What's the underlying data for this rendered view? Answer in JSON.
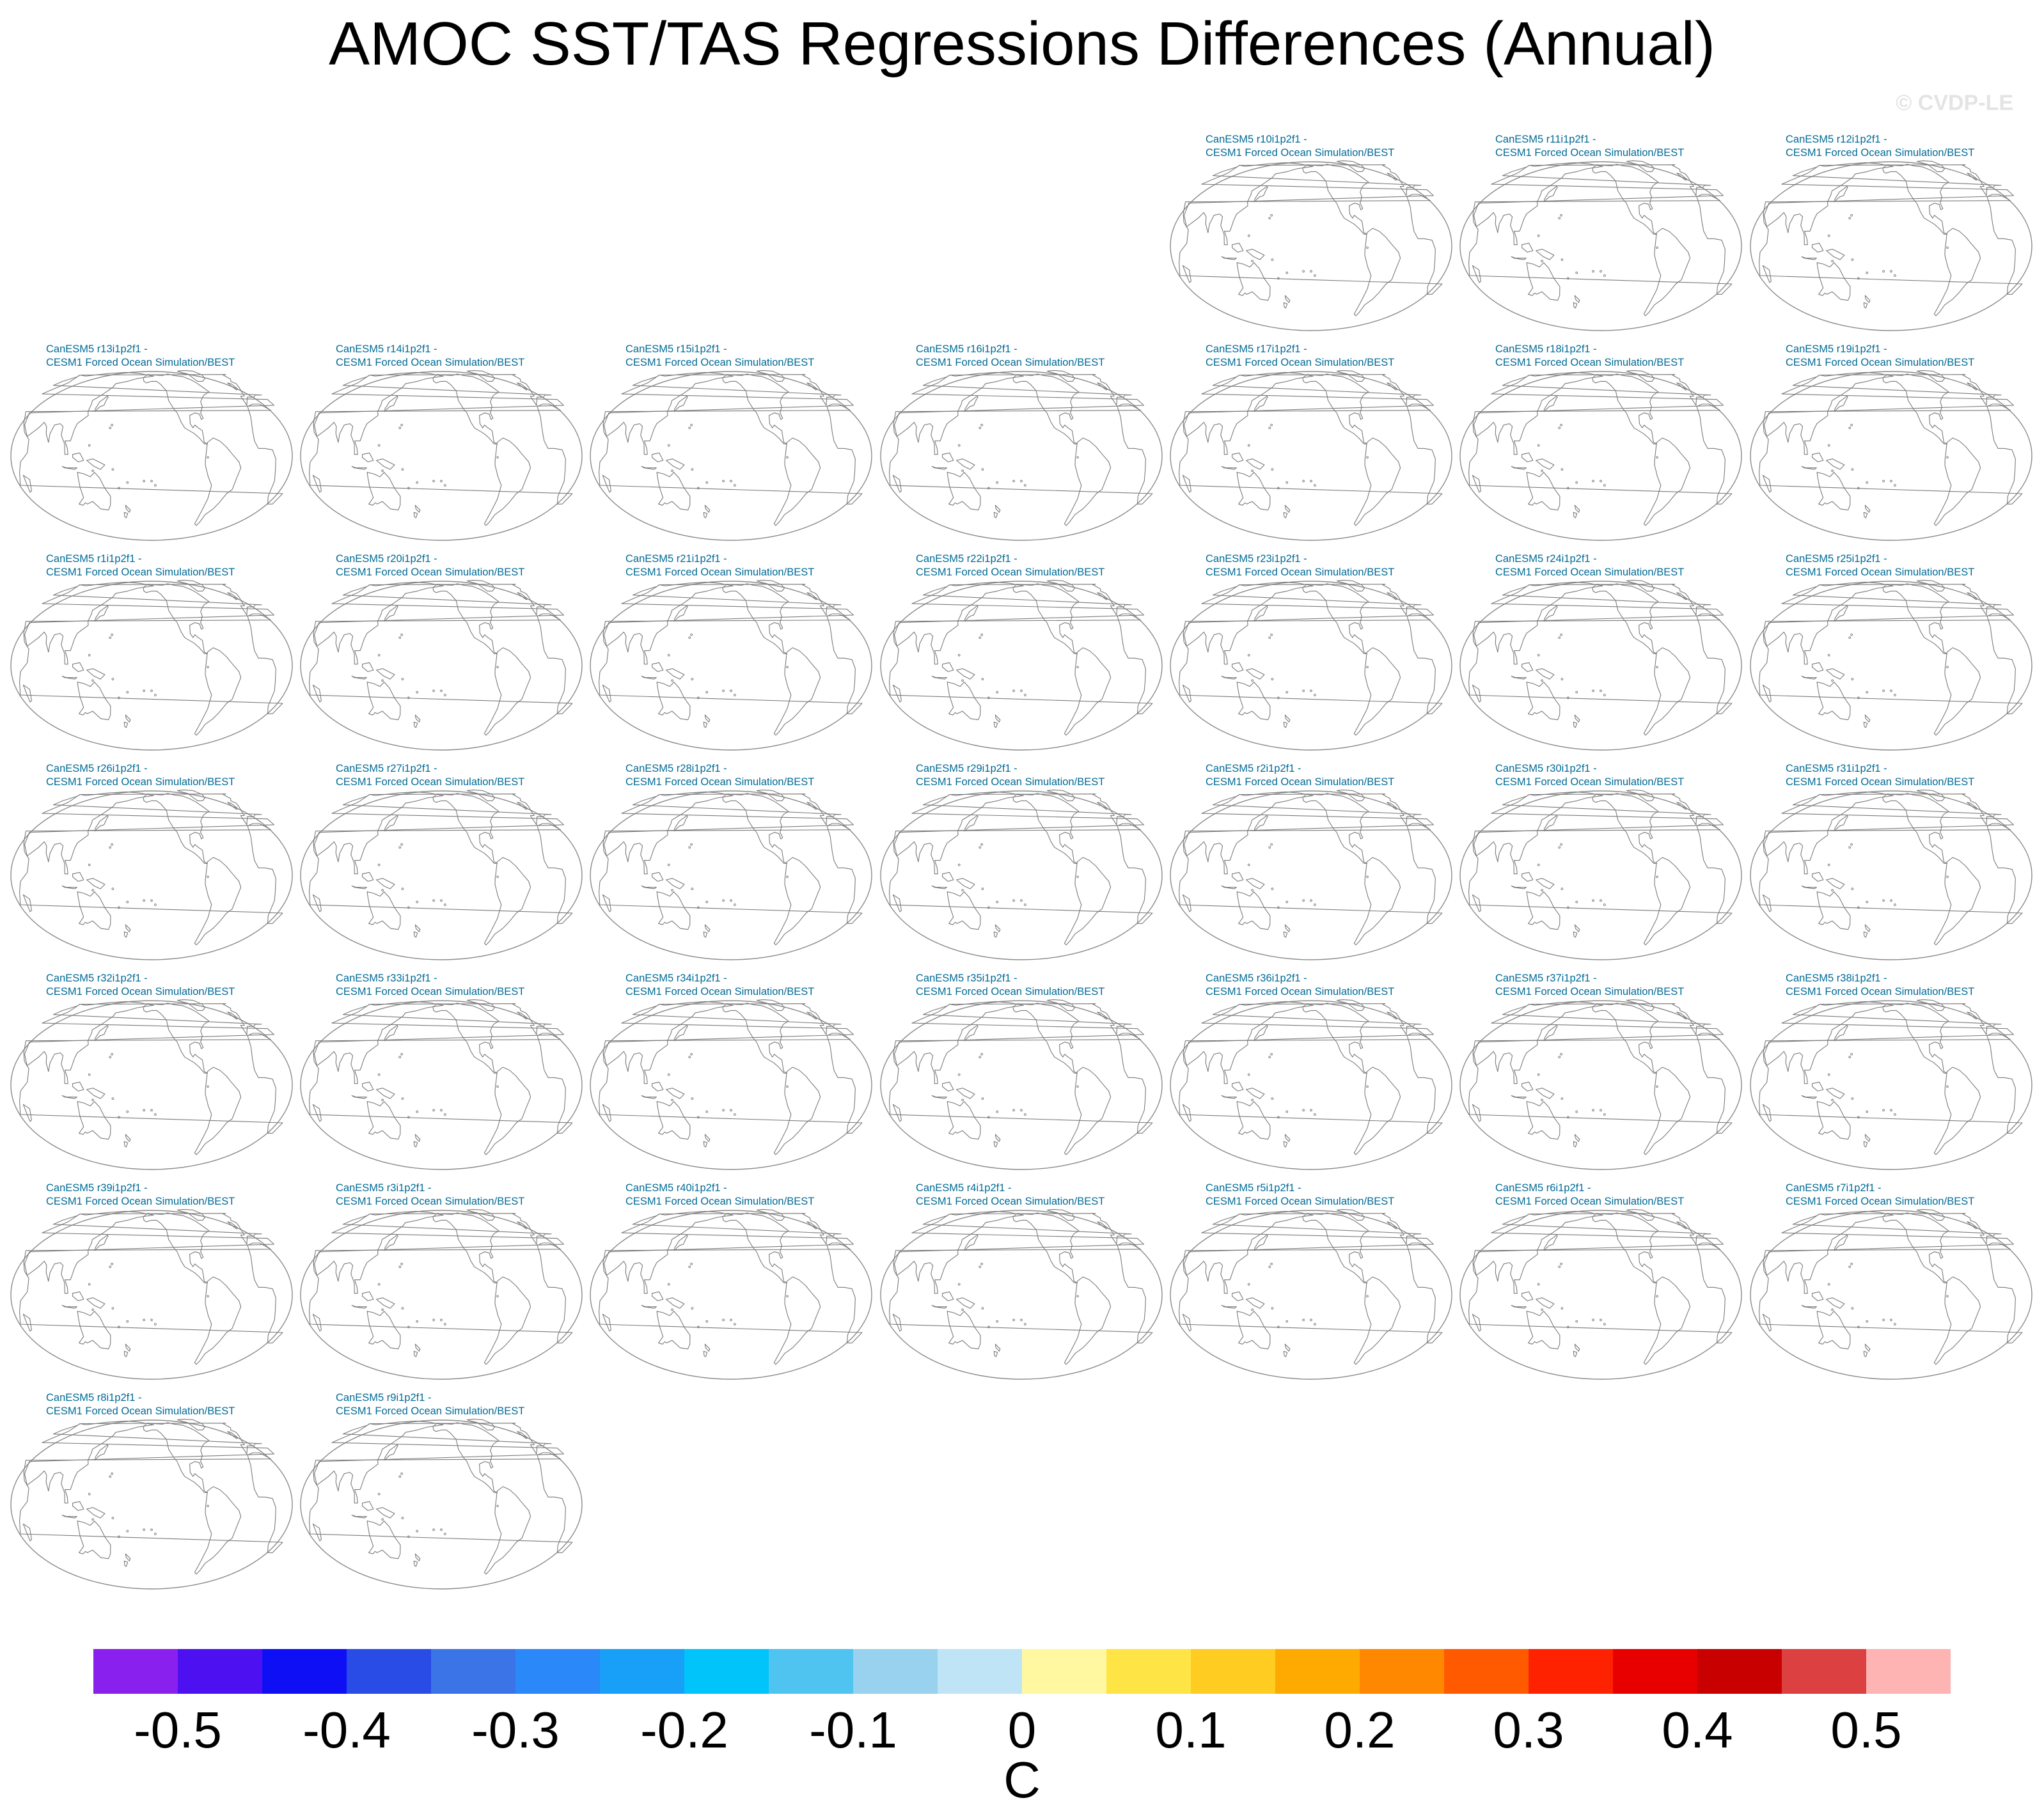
{
  "title": "AMOC SST/TAS Regressions Differences (Annual)",
  "watermark": "© CVDP-LE",
  "chart_data": {
    "type": "map-panels",
    "title": "AMOC SST/TAS Regressions Differences (Annual)",
    "layout": "7 columns; first row starts at column 5",
    "panels": [
      {
        "line1": "CanESM5 r10i1p2f1 -",
        "line2": "CESM1 Forced Ocean Simulation/BEST"
      },
      {
        "line1": "CanESM5 r11i1p2f1 -",
        "line2": "CESM1 Forced Ocean Simulation/BEST"
      },
      {
        "line1": "CanESM5 r12i1p2f1 -",
        "line2": "CESM1 Forced Ocean Simulation/BEST"
      },
      {
        "line1": "CanESM5 r13i1p2f1 -",
        "line2": "CESM1 Forced Ocean Simulation/BEST"
      },
      {
        "line1": "CanESM5 r14i1p2f1 -",
        "line2": "CESM1 Forced Ocean Simulation/BEST"
      },
      {
        "line1": "CanESM5 r15i1p2f1 -",
        "line2": "CESM1 Forced Ocean Simulation/BEST"
      },
      {
        "line1": "CanESM5 r16i1p2f1 -",
        "line2": "CESM1 Forced Ocean Simulation/BEST"
      },
      {
        "line1": "CanESM5 r17i1p2f1 -",
        "line2": "CESM1 Forced Ocean Simulation/BEST"
      },
      {
        "line1": "CanESM5 r18i1p2f1 -",
        "line2": "CESM1 Forced Ocean Simulation/BEST"
      },
      {
        "line1": "CanESM5 r19i1p2f1 -",
        "line2": "CESM1 Forced Ocean Simulation/BEST"
      },
      {
        "line1": "CanESM5 r1i1p2f1 -",
        "line2": "CESM1 Forced Ocean Simulation/BEST"
      },
      {
        "line1": "CanESM5 r20i1p2f1 -",
        "line2": "CESM1 Forced Ocean Simulation/BEST"
      },
      {
        "line1": "CanESM5 r21i1p2f1 -",
        "line2": "CESM1 Forced Ocean Simulation/BEST"
      },
      {
        "line1": "CanESM5 r22i1p2f1 -",
        "line2": "CESM1 Forced Ocean Simulation/BEST"
      },
      {
        "line1": "CanESM5 r23i1p2f1 -",
        "line2": "CESM1 Forced Ocean Simulation/BEST"
      },
      {
        "line1": "CanESM5 r24i1p2f1 -",
        "line2": "CESM1 Forced Ocean Simulation/BEST"
      },
      {
        "line1": "CanESM5 r25i1p2f1 -",
        "line2": "CESM1 Forced Ocean Simulation/BEST"
      },
      {
        "line1": "CanESM5 r26i1p2f1 -",
        "line2": "CESM1 Forced Ocean Simulation/BEST"
      },
      {
        "line1": "CanESM5 r27i1p2f1 -",
        "line2": "CESM1 Forced Ocean Simulation/BEST"
      },
      {
        "line1": "CanESM5 r28i1p2f1 -",
        "line2": "CESM1 Forced Ocean Simulation/BEST"
      },
      {
        "line1": "CanESM5 r29i1p2f1 -",
        "line2": "CESM1 Forced Ocean Simulation/BEST"
      },
      {
        "line1": "CanESM5 r2i1p2f1 -",
        "line2": "CESM1 Forced Ocean Simulation/BEST"
      },
      {
        "line1": "CanESM5 r30i1p2f1 -",
        "line2": "CESM1 Forced Ocean Simulation/BEST"
      },
      {
        "line1": "CanESM5 r31i1p2f1 -",
        "line2": "CESM1 Forced Ocean Simulation/BEST"
      },
      {
        "line1": "CanESM5 r32i1p2f1 -",
        "line2": "CESM1 Forced Ocean Simulation/BEST"
      },
      {
        "line1": "CanESM5 r33i1p2f1 -",
        "line2": "CESM1 Forced Ocean Simulation/BEST"
      },
      {
        "line1": "CanESM5 r34i1p2f1 -",
        "line2": "CESM1 Forced Ocean Simulation/BEST"
      },
      {
        "line1": "CanESM5 r35i1p2f1 -",
        "line2": "CESM1 Forced Ocean Simulation/BEST"
      },
      {
        "line1": "CanESM5 r36i1p2f1 -",
        "line2": "CESM1 Forced Ocean Simulation/BEST"
      },
      {
        "line1": "CanESM5 r37i1p2f1 -",
        "line2": "CESM1 Forced Ocean Simulation/BEST"
      },
      {
        "line1": "CanESM5 r38i1p2f1 -",
        "line2": "CESM1 Forced Ocean Simulation/BEST"
      },
      {
        "line1": "CanESM5 r39i1p2f1 -",
        "line2": "CESM1 Forced Ocean Simulation/BEST"
      },
      {
        "line1": "CanESM5 r3i1p2f1 -",
        "line2": "CESM1 Forced Ocean Simulation/BEST"
      },
      {
        "line1": "CanESM5 r40i1p2f1 -",
        "line2": "CESM1 Forced Ocean Simulation/BEST"
      },
      {
        "line1": "CanESM5 r4i1p2f1 -",
        "line2": "CESM1 Forced Ocean Simulation/BEST"
      },
      {
        "line1": "CanESM5 r5i1p2f1 -",
        "line2": "CESM1 Forced Ocean Simulation/BEST"
      },
      {
        "line1": "CanESM5 r6i1p2f1 -",
        "line2": "CESM1 Forced Ocean Simulation/BEST"
      },
      {
        "line1": "CanESM5 r7i1p2f1 -",
        "line2": "CESM1 Forced Ocean Simulation/BEST"
      },
      {
        "line1": "CanESM5 r8i1p2f1 -",
        "line2": "CESM1 Forced Ocean Simulation/BEST"
      },
      {
        "line1": "CanESM5 r9i1p2f1 -",
        "line2": "CESM1 Forced Ocean Simulation/BEST"
      }
    ],
    "colorbar": {
      "colors": [
        "#8a20ee",
        "#4d10f0",
        "#0f0ff5",
        "#2a4ce6",
        "#3a74e6",
        "#2a88f8",
        "#18a0f8",
        "#00c4fa",
        "#50c4f0",
        "#98d2ee",
        "#bee4f6",
        "#fff8a0",
        "#ffe446",
        "#ffcc22",
        "#ffaa00",
        "#ff8800",
        "#ff5a00",
        "#ff2200",
        "#e80000",
        "#c80000",
        "#dc4040",
        "#ffb4b4"
      ],
      "tick_labels": [
        "-0.5",
        "-0.4",
        "-0.3",
        "-0.2",
        "-0.1",
        "0",
        "0.1",
        "0.2",
        "0.3",
        "0.4",
        "0.5"
      ],
      "range": [
        -0.55,
        0.55
      ],
      "units": "C"
    }
  }
}
